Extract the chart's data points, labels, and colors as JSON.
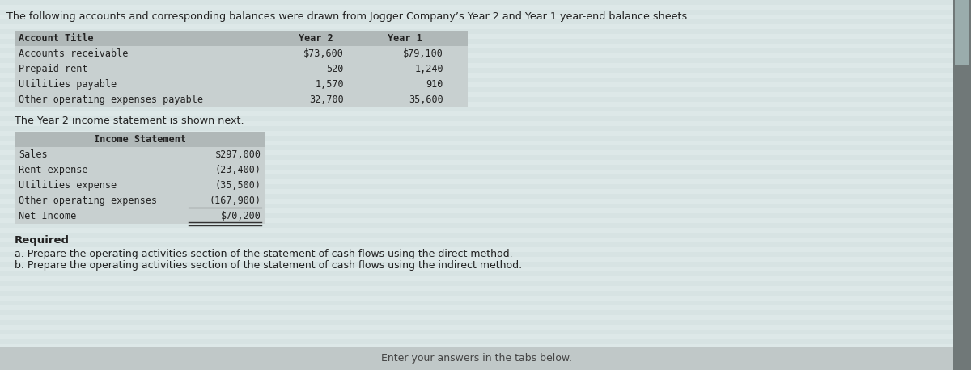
{
  "bg_color": "#dde8e8",
  "header_text": "The following accounts and corresponding balances were drawn from Jogger Company’s Year 2 and Year 1 year-end balance sheets.",
  "table1_header": [
    "Account Title",
    "Year 2",
    "Year 1"
  ],
  "table1_rows": [
    [
      "Accounts receivable",
      "$73,600",
      "$79,100"
    ],
    [
      "Prepaid rent",
      "520",
      "1,240"
    ],
    [
      "Utilities payable",
      "1,570",
      "910"
    ],
    [
      "Other operating expenses payable",
      "32,700",
      "35,600"
    ]
  ],
  "mid_text": "The Year 2 income statement is shown next.",
  "table2_header": "Income Statement",
  "table2_rows": [
    [
      "Sales",
      "$297,000"
    ],
    [
      "Rent expense",
      "(23,400)"
    ],
    [
      "Utilities expense",
      "(35,500)"
    ],
    [
      "Other operating expenses",
      "(167,900)"
    ],
    [
      "Net Income",
      "$70,200"
    ]
  ],
  "required_text": "Required",
  "req_a": "a. Prepare the operating activities section of the statement of cash flows using the direct method.",
  "req_b": "b. Prepare the operating activities section of the statement of cash flows using the indirect method.",
  "bottom_text": "Enter your answers in the tabs below.",
  "header_row_color": "#b0b8b8",
  "table_bg_color": "#c8d0d0",
  "font_color": "#222222",
  "right_panel_color": "#8a9090",
  "bottom_bar_color": "#c0c8c8",
  "scrollbar_color": "#707878",
  "stripe_color_light": "#ddeaea",
  "stripe_color_dark": "#d0e0e0"
}
